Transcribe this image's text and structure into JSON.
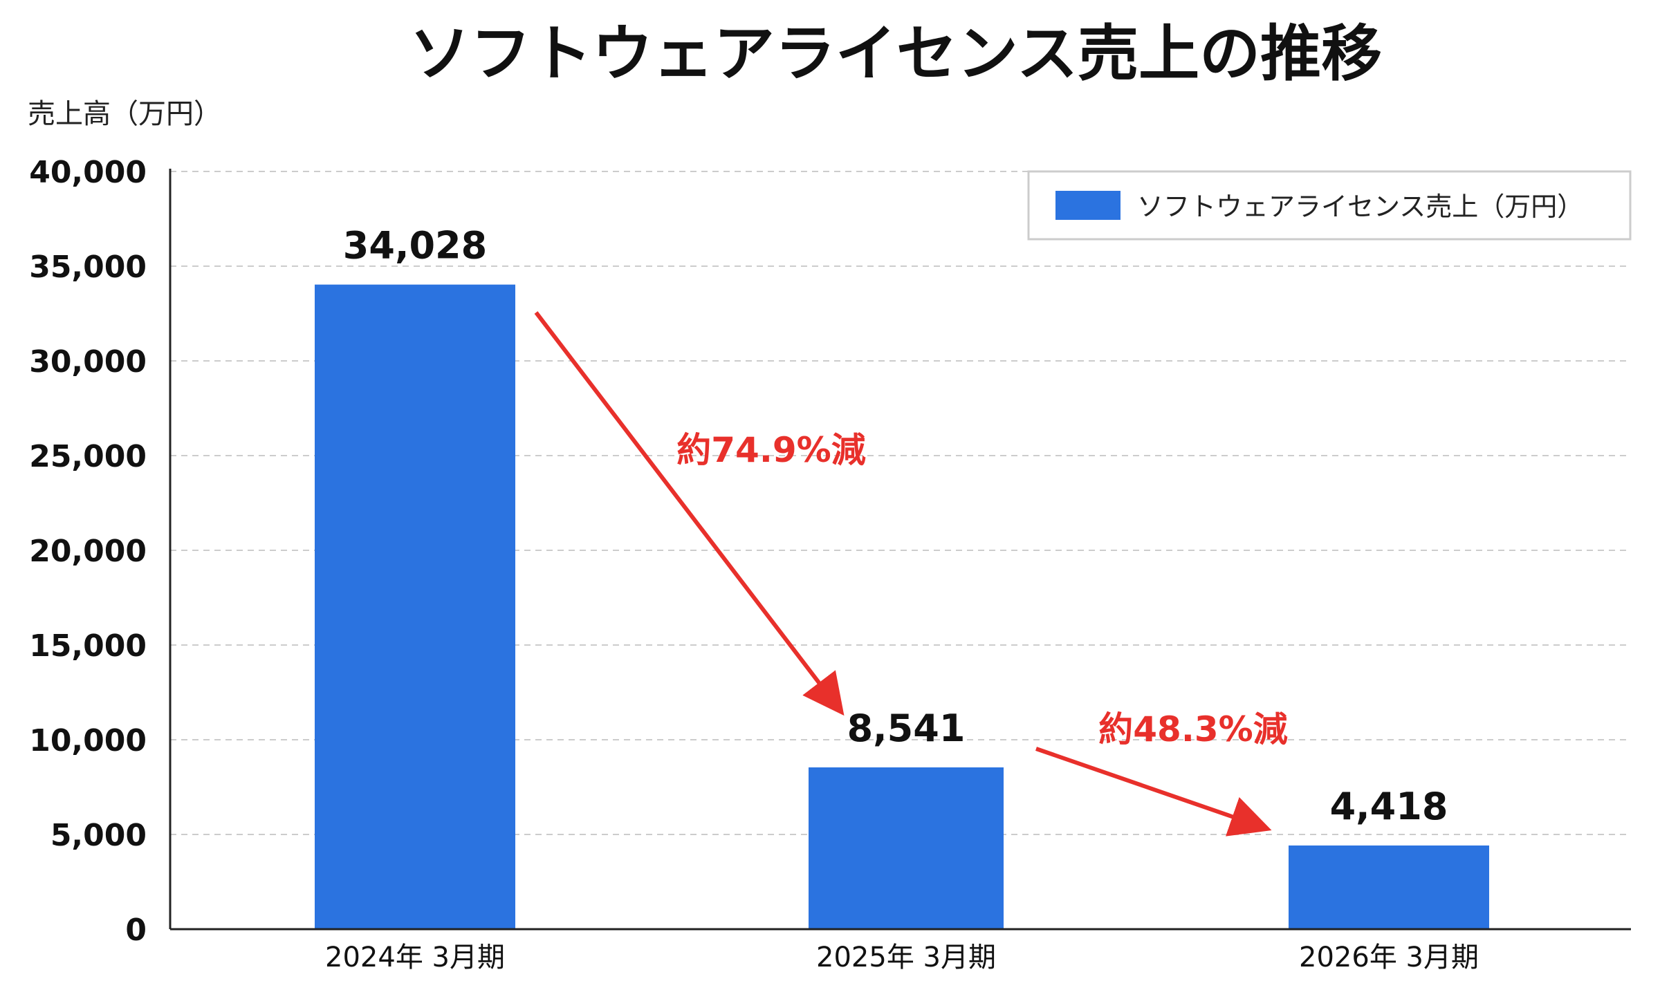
{
  "chart_data": {
    "type": "bar",
    "title": "ソフトウェアライセンス売上の推移",
    "ylabel": "売上高（万円）",
    "xlabel": "",
    "categories": [
      "2024年 3月期",
      "2025年 3月期",
      "2026年 3月期"
    ],
    "series": [
      {
        "name": "ソフトウェアライセンス売上（万円）",
        "values": [
          34028,
          8541,
          4418
        ]
      }
    ],
    "data_labels": [
      "34,028",
      "8,541",
      "4,418"
    ],
    "ylim": [
      0,
      40000
    ],
    "yticks": [
      0,
      5000,
      10000,
      15000,
      20000,
      25000,
      30000,
      35000,
      40000
    ],
    "ytick_labels": [
      "0",
      "5,000",
      "10,000",
      "15,000",
      "20,000",
      "25,000",
      "30,000",
      "35,000",
      "40,000"
    ],
    "grid": true,
    "legend_position": "top-right",
    "annotations": [
      {
        "text": "約74.9%減",
        "from_category": 0,
        "to_category": 1
      },
      {
        "text": "約48.3%減",
        "from_category": 1,
        "to_category": 2
      }
    ],
    "colors": {
      "bar": "#2B73E0",
      "annotation": "#E8302B",
      "grid": "#cccccc",
      "axis": "#222222"
    }
  }
}
